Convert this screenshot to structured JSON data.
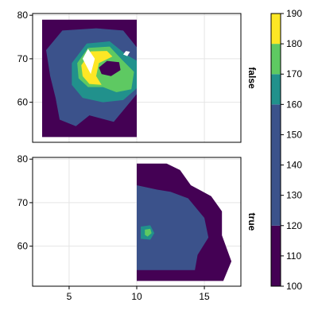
{
  "chart_data": {
    "type": "contour",
    "facet_by": "strip",
    "x_ticks": [
      5,
      10,
      15
    ],
    "y_ticks": [
      60,
      70,
      80
    ],
    "xlim": [
      2.3,
      17.7
    ],
    "ylim": [
      50.8,
      80.4
    ],
    "grid": true,
    "colorbar": {
      "levels": [
        100,
        110,
        120,
        130,
        140,
        150,
        160,
        170,
        180,
        190
      ],
      "bands": [
        {
          "from": 100,
          "to": 120,
          "color": "#440154"
        },
        {
          "from": 120,
          "to": 160,
          "color": "#3b528b"
        },
        {
          "from": 160,
          "to": 170,
          "color": "#21918c"
        },
        {
          "from": 170,
          "to": 180,
          "color": "#5ec962"
        },
        {
          "from": 180,
          "to": 190,
          "color": "#fde725"
        }
      ]
    },
    "panels": [
      {
        "strip": "false",
        "x_range": [
          3,
          10
        ],
        "y_range": [
          51.5,
          79
        ],
        "peak": {
          "x": 6.5,
          "y": 68,
          "value": 190
        }
      },
      {
        "strip": "true",
        "x_range": [
          10,
          17
        ],
        "y_range": [
          52,
          79
        ],
        "peak": {
          "x": 10.8,
          "y": 63,
          "value": 165
        }
      }
    ]
  }
}
